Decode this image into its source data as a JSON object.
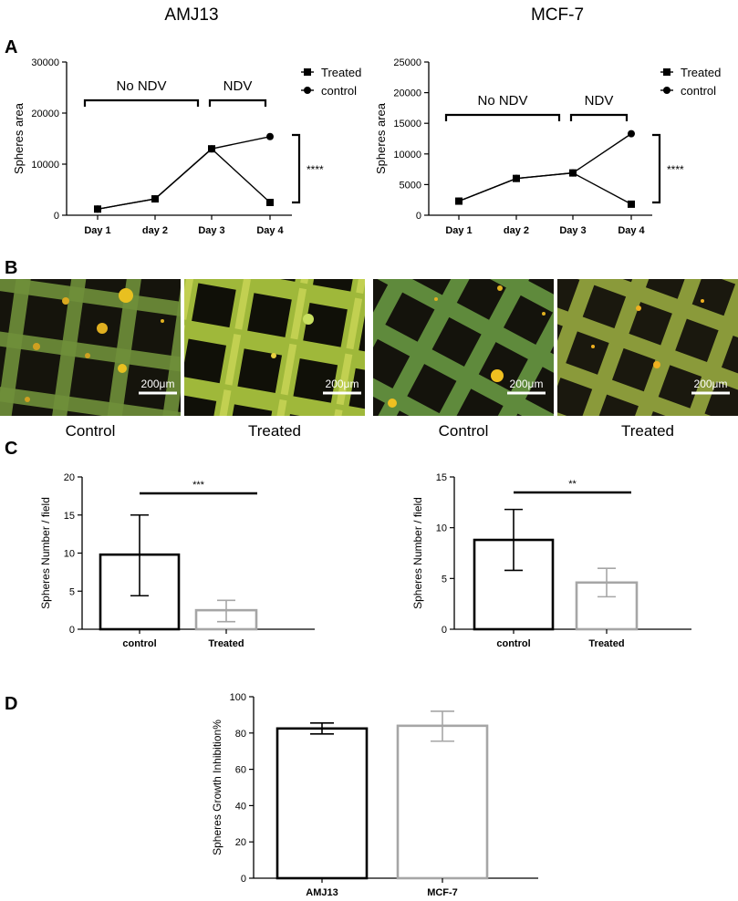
{
  "headings": {
    "left": "AMJ13",
    "right": "MCF-7"
  },
  "panel_labels": {
    "a": "A",
    "b": "B",
    "c": "C",
    "d": "D"
  },
  "panel_b": {
    "captions": [
      "Control",
      "Treated",
      "Control",
      "Treated"
    ],
    "scale_label": "200μm",
    "colors": {
      "grid": "#7fa33c",
      "background": "#1a1a12",
      "spheres": "#ffcc00"
    }
  },
  "chart_data": [
    {
      "id": "A-AMJ13",
      "type": "line",
      "ylabel": "Spheres area",
      "ylim": [
        0,
        30000
      ],
      "yticks": [
        0,
        10000,
        20000,
        30000
      ],
      "categories": [
        "Day 1",
        "day 2",
        "Day 3",
        "Day 4"
      ],
      "series": [
        {
          "name": "Treated",
          "marker": "square",
          "values": [
            1200,
            3200,
            13000,
            2500
          ]
        },
        {
          "name": "control",
          "marker": "circle",
          "values": [
            1200,
            3200,
            13000,
            15400
          ]
        }
      ],
      "brackets": [
        {
          "label": "No NDV",
          "from": "Day 1",
          "to": "Day 3"
        },
        {
          "label": "NDV",
          "from": "Day 3",
          "to": "Day 4"
        }
      ],
      "significance": "****",
      "legend": "top-right"
    },
    {
      "id": "A-MCF7",
      "type": "line",
      "ylabel": "Spheres area",
      "ylim": [
        0,
        25000
      ],
      "yticks": [
        0,
        5000,
        10000,
        15000,
        20000,
        25000
      ],
      "categories": [
        "Day 1",
        "day 2",
        "Day 3",
        "Day 4"
      ],
      "series": [
        {
          "name": "Treated",
          "marker": "square",
          "values": [
            2300,
            6000,
            6900,
            1800
          ]
        },
        {
          "name": "control",
          "marker": "circle",
          "values": [
            2300,
            6000,
            6900,
            13300
          ]
        }
      ],
      "brackets": [
        {
          "label": "No NDV",
          "from": "Day 1",
          "to": "Day 3"
        },
        {
          "label": "NDV",
          "from": "Day 3",
          "to": "Day 4"
        }
      ],
      "significance": "****",
      "legend": "top-right"
    },
    {
      "id": "C-AMJ13",
      "type": "bar",
      "ylabel": "Spheres Number / field",
      "ylim": [
        0,
        20
      ],
      "yticks": [
        0,
        5,
        10,
        15,
        20
      ],
      "categories": [
        "control",
        "Treated"
      ],
      "values": [
        9.8,
        2.5
      ],
      "error_low": [
        4.4,
        1.0
      ],
      "error_high": [
        15.0,
        3.8
      ],
      "colors": [
        "#000000",
        "#a6a6a6"
      ],
      "significance": "***"
    },
    {
      "id": "C-MCF7",
      "type": "bar",
      "ylabel": "Spheres Number / field",
      "ylim": [
        0,
        15
      ],
      "yticks": [
        0,
        5,
        10,
        15
      ],
      "categories": [
        "control",
        "Treated"
      ],
      "values": [
        8.8,
        4.6
      ],
      "error_low": [
        5.8,
        3.2
      ],
      "error_high": [
        11.8,
        6.0
      ],
      "colors": [
        "#000000",
        "#a6a6a6"
      ],
      "significance": "**"
    },
    {
      "id": "D",
      "type": "bar",
      "ylabel": "Spheres Growth Inhibition%",
      "ylim": [
        0,
        100
      ],
      "yticks": [
        0,
        20,
        40,
        60,
        80,
        100
      ],
      "categories": [
        "AMJ13",
        "MCF-7"
      ],
      "values": [
        82.5,
        84.0
      ],
      "error_low": [
        79.5,
        75.5
      ],
      "error_high": [
        85.5,
        92.0
      ],
      "colors": [
        "#000000",
        "#a6a6a6"
      ]
    }
  ]
}
